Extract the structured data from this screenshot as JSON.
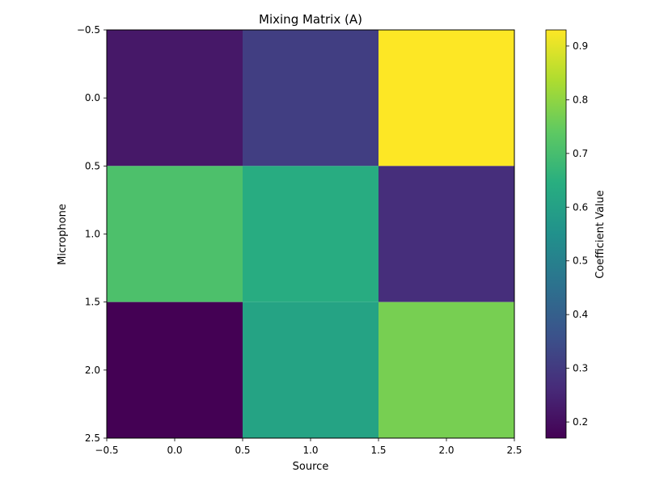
{
  "chart_data": {
    "type": "heatmap",
    "title": "Mixing Matrix (A)",
    "xlabel": "Source",
    "ylabel": "Microphone",
    "xlim": [
      -0.5,
      2.5
    ],
    "ylim": [
      2.5,
      -0.5
    ],
    "x_ticks": [
      "−0.5",
      "0.0",
      "0.5",
      "1.0",
      "1.5",
      "2.0",
      "2.5"
    ],
    "y_ticks": [
      "−0.5",
      "0.0",
      "0.5",
      "1.0",
      "1.5",
      "2.0",
      "2.5"
    ],
    "rows": [
      [
        0.22,
        0.31,
        0.93
      ],
      [
        0.71,
        0.64,
        0.27
      ],
      [
        0.17,
        0.61,
        0.77
      ]
    ],
    "colormap": "viridis",
    "colorbar": {
      "label": "Coefficient Value",
      "range": [
        0.17,
        0.93
      ],
      "ticks": [
        "0.2",
        "0.3",
        "0.4",
        "0.5",
        "0.6",
        "0.7",
        "0.8",
        "0.9"
      ],
      "tick_values": [
        0.2,
        0.3,
        0.4,
        0.5,
        0.6,
        0.7,
        0.8,
        0.9
      ]
    },
    "grid": false
  }
}
